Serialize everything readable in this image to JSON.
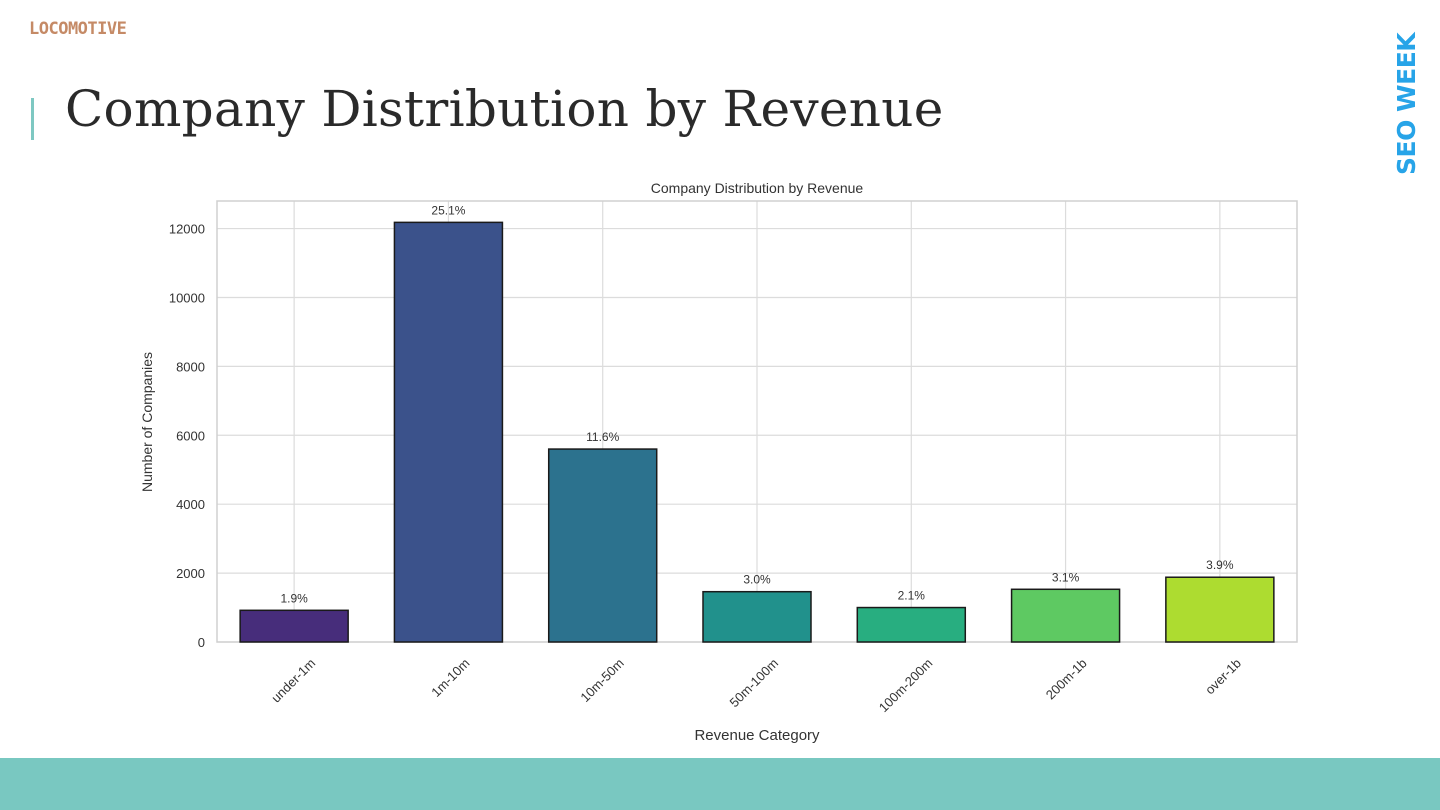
{
  "logo": "LOCOMOTIVE",
  "slide_title": "Company Distribution by Revenue",
  "brand": "SEO WEEK",
  "colors": {
    "accent": "#7ec8c2",
    "footer": "#79c8c1",
    "brand": "#27a4e8",
    "logo": "#c58a66"
  },
  "chart_data": {
    "type": "bar",
    "title": "Company Distribution by Revenue",
    "xlabel": "Revenue Category",
    "ylabel": "Number of Companies",
    "categories": [
      "under-1m",
      "1m-10m",
      "10m-50m",
      "50m-100m",
      "100m-200m",
      "200m-1b",
      "over-1b"
    ],
    "values": [
      920,
      12180,
      5600,
      1460,
      1000,
      1530,
      1880
    ],
    "data_labels": [
      "1.9%",
      "25.1%",
      "11.6%",
      "3.0%",
      "2.1%",
      "3.1%",
      "3.9%"
    ],
    "colors": [
      "#472d7b",
      "#3b528b",
      "#2c728e",
      "#21918c",
      "#28ae80",
      "#5ec962",
      "#addc30"
    ],
    "yticks": [
      0,
      2000,
      4000,
      6000,
      8000,
      10000,
      12000
    ],
    "ylim": [
      0,
      12800
    ],
    "grid": true
  }
}
